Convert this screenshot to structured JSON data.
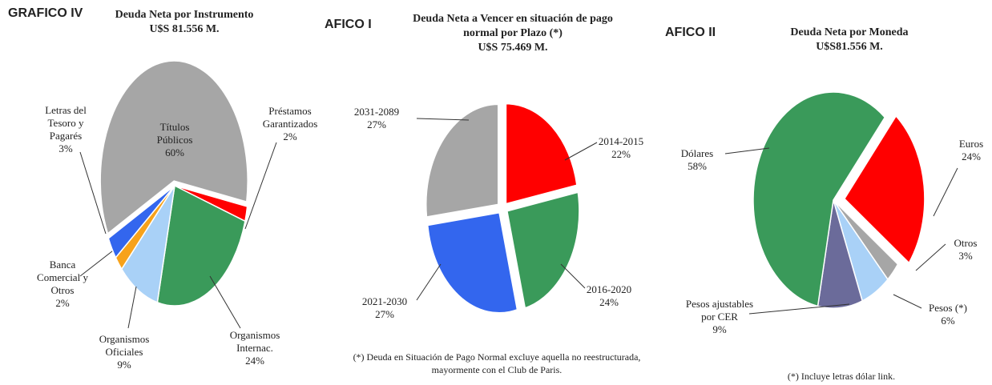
{
  "chart_data": [
    {
      "type": "pie",
      "header": "GRAFICO IV",
      "title": "Deuda Neta por Instrumento",
      "subtitle": "U$S 81.556 M.",
      "categories": [
        "Títulos Públicos",
        "Préstamos Garantizados",
        "Organismos Internac.",
        "Organismos Oficiales",
        "Banca Comercial y Otros",
        "Letras del Tesoro y Pagarés"
      ],
      "values": [
        60,
        2,
        24,
        9,
        2,
        3
      ],
      "value_labels": [
        "60%",
        "2%",
        "24%",
        "9%",
        "2%",
        "3%"
      ],
      "colors": [
        "#a6a6a6",
        "#ff0000",
        "#3a9a5a",
        "#a9d1f7",
        "#f7a21b",
        "#3366ee"
      ]
    },
    {
      "type": "pie",
      "header": "AFICO I",
      "title": "Deuda Neta a Vencer en situación de pago normal por Plazo (*)",
      "subtitle": "U$S 75.469 M.",
      "categories": [
        "2014-2015",
        "2016-2020",
        "2021-2030",
        "2031-2089"
      ],
      "values": [
        22,
        24,
        27,
        27
      ],
      "value_labels": [
        "22%",
        "24%",
        "27%",
        "27%"
      ],
      "colors": [
        "#ff0000",
        "#3a9a5a",
        "#3366ee",
        "#a6a6a6"
      ],
      "note": "(*) Deuda en Situación de Pago Normal excluye aquella no reestructurada, mayormente con el Club de Paris."
    },
    {
      "type": "pie",
      "header": "AFICO II",
      "title": "Deuda Neta por Moneda",
      "subtitle": "U$S81.556 M.",
      "categories": [
        "Euros",
        "Otros",
        "Pesos (*)",
        "Pesos ajustables por CER",
        "Dólares"
      ],
      "values": [
        24,
        3,
        6,
        9,
        58
      ],
      "value_labels": [
        "24%",
        "3%",
        "6%",
        "9%",
        "58%"
      ],
      "colors": [
        "#ff0000",
        "#a6a6a6",
        "#a9d1f7",
        "#6b6b9a",
        "#3a9a5a"
      ],
      "note": "(*) Incluye letras dólar link."
    }
  ]
}
